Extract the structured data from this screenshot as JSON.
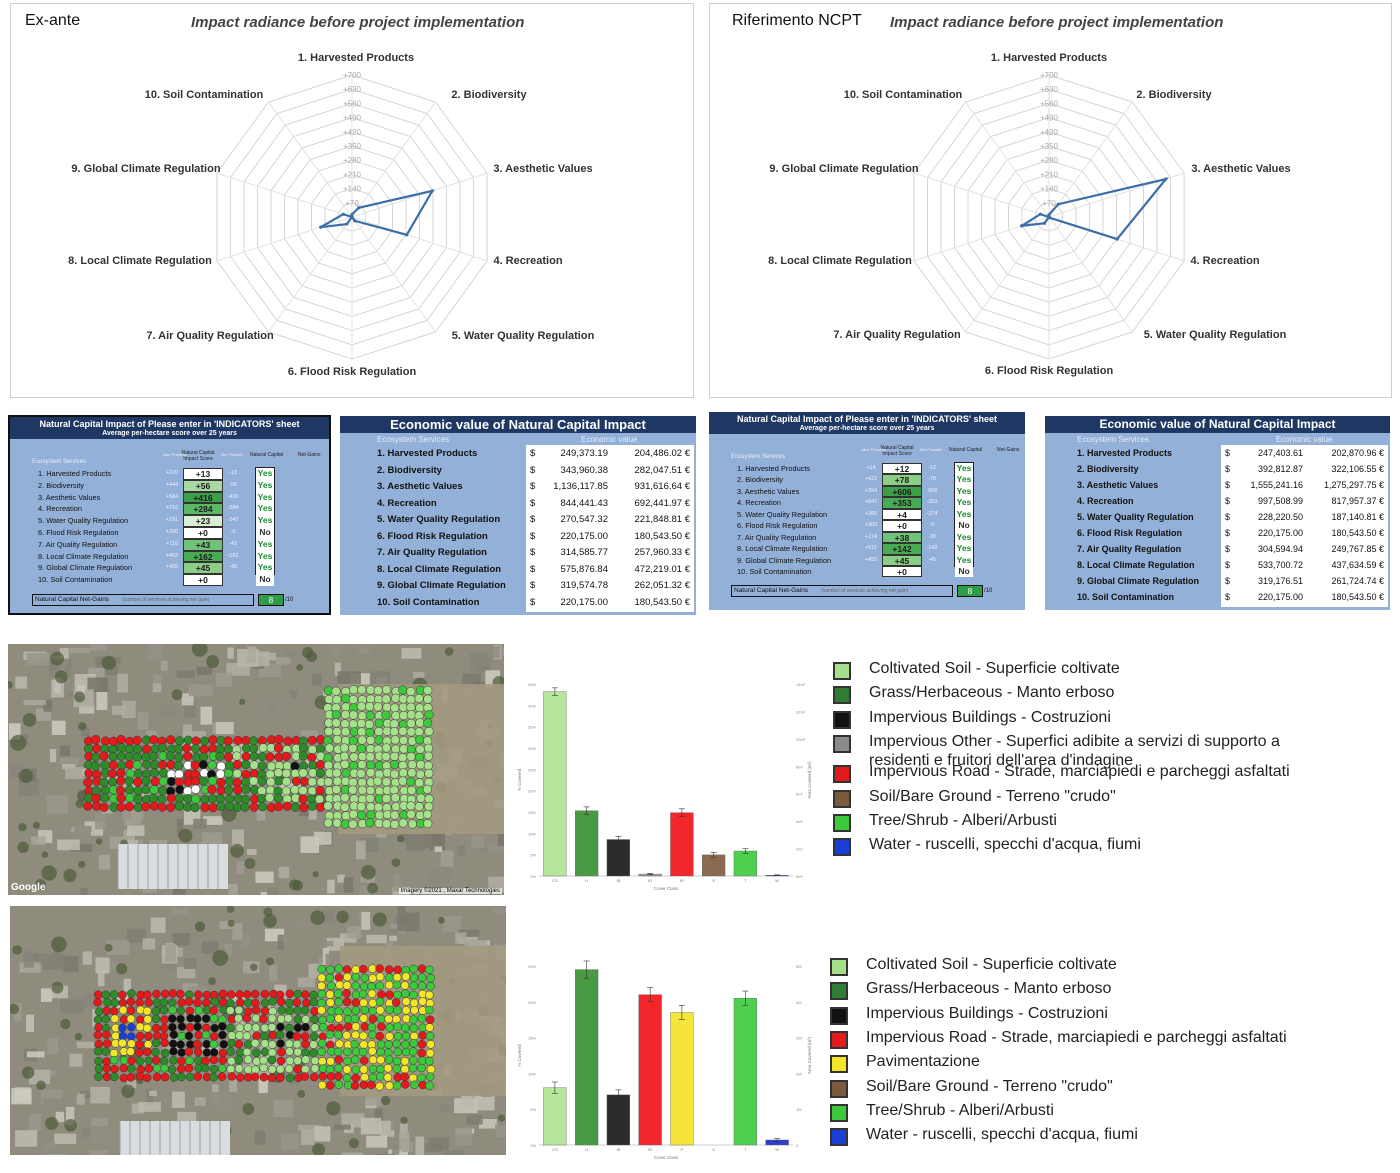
{
  "radar_axes": [
    "1. Harvested Products",
    "2. Biodiversity",
    "3. Aesthetic Values",
    "4. Recreation",
    "5. Water Quality Regulation",
    "6. Flood Risk Regulation",
    "7. Air Quality Regulation",
    "8. Local Climate Regulation",
    "9. Global Climate Regulation",
    "10. Soil Contamination"
  ],
  "radar_ticks": [
    "+70",
    "+140",
    "+210",
    "+280",
    "+350",
    "+420",
    "+490",
    "+560",
    "+630",
    "+700"
  ],
  "left_panel": {
    "label": "Ex-ante",
    "title": "Impact radiance before project implementation",
    "table": {
      "title": "Natural Capital Impact of Please enter in 'INDICATORS' sheet",
      "subtitle": "Average per-hectare score over 25 years",
      "col_services": "Ecosystem Services",
      "col_max": "Max Possible",
      "col_score": "Natural Capital Impact Score",
      "col_min": "Min Possible",
      "col_nc": "Natural Capital",
      "col_net": "Net-Gains",
      "rows": [
        {
          "name": "1. Harvested Products",
          "max": "+220",
          "score": "+13",
          "min": "-13",
          "yn": "Yes",
          "shade": "#ffffff"
        },
        {
          "name": "2. Biodiversity",
          "max": "+444",
          "score": "+56",
          "min": "-56",
          "yn": "Yes",
          "shade": "#a9d8a4"
        },
        {
          "name": "3. Aesthetic Values",
          "max": "+584",
          "score": "+416",
          "min": "-416",
          "yn": "Yes",
          "shade": "#3d9f4a"
        },
        {
          "name": "4. Recreation",
          "max": "+716",
          "score": "+284",
          "min": "-284",
          "yn": "Yes",
          "shade": "#5cb865"
        },
        {
          "name": "5. Water Quality Regulation",
          "max": "+291",
          "score": "+23",
          "min": "-247",
          "yn": "Yes",
          "shade": "#d8efd4"
        },
        {
          "name": "6. Flood Risk Regulation",
          "max": "+300",
          "score": "+0",
          "min": "-0",
          "yn": "No",
          "shade": "#ffffff"
        },
        {
          "name": "7. Air Quality Regulation",
          "max": "+110",
          "score": "+43",
          "min": "-43",
          "yn": "Yes",
          "shade": "#6fc277"
        },
        {
          "name": "8. Local Climate Regulation",
          "max": "+492",
          "score": "+162",
          "min": "-162",
          "yn": "Yes",
          "shade": "#4aab55"
        },
        {
          "name": "9. Global Climate Regulation",
          "max": "+455",
          "score": "+45",
          "min": "-45",
          "yn": "Yes",
          "shade": "#8ccd88"
        },
        {
          "name": "10. Soil Contamination",
          "max": "",
          "score": "+0",
          "min": "",
          "yn": "No",
          "shade": "#ffffff"
        }
      ],
      "net_label": "Natural Capital Net-Gains",
      "net_note": "(number of services achieving net gain)",
      "net_value": "8",
      "net_of": "/10"
    },
    "econ": {
      "title": "Economic value of Natural Capital Impact",
      "col_services": "Ecosystem Services",
      "col_value": "Economic value",
      "rows": [
        {
          "name": "1. Harvested Products",
          "usd": "249,373.19",
          "eur": "204,486.02 €"
        },
        {
          "name": "2. Biodiversity",
          "usd": "343,960.38",
          "eur": "282,047.51 €"
        },
        {
          "name": "3. Aesthetic Values",
          "usd": "1,136,117.85",
          "eur": "931,616.64 €"
        },
        {
          "name": "4. Recreation",
          "usd": "844,441.43",
          "eur": "692,441.97 €"
        },
        {
          "name": "5. Water Quality Regulation",
          "usd": "270,547.32",
          "eur": "221,848.81 €"
        },
        {
          "name": "6. Flood Risk Regulation",
          "usd": "220,175.00",
          "eur": "180,543.50 €"
        },
        {
          "name": "7. Air Quality Regulation",
          "usd": "314,585.77",
          "eur": "257,960.33 €"
        },
        {
          "name": "8. Local Climate Regulation",
          "usd": "575,876.84",
          "eur": "472,219.01 €"
        },
        {
          "name": "9. Global Climate Regulation",
          "usd": "319,574.78",
          "eur": "262,051.32 €"
        },
        {
          "name": "10. Soil Contamination",
          "usd": "220,175.00",
          "eur": "180,543.50 €"
        }
      ],
      "currency": "$"
    }
  },
  "right_panel": {
    "label": "Riferimento NCPT",
    "title": "Impact radiance before project implementation",
    "table": {
      "title": "Natural Capital Impact of Please enter in 'INDICATORS' sheet",
      "subtitle": "Average per-hectare score over 25 years",
      "col_services": "Ecosystem Services",
      "col_max": "Max Possible",
      "col_score": "Natural Capital Impact Score",
      "col_min": "Min Possible",
      "col_nc": "Natural Capital",
      "col_net": "Net-Gains",
      "rows": [
        {
          "name": "1. Harvested Products",
          "max": "+14",
          "score": "+12",
          "min": "-12",
          "yn": "Yes",
          "shade": "#ffffff"
        },
        {
          "name": "2. Biodiversity",
          "max": "+422",
          "score": "+78",
          "min": "-78",
          "yn": "Yes",
          "shade": "#8ccd88"
        },
        {
          "name": "3. Aesthetic Values",
          "max": "+394",
          "score": "+606",
          "min": "-606",
          "yn": "Yes",
          "shade": "#3d9f4a"
        },
        {
          "name": "4. Recreation",
          "max": "+647",
          "score": "+353",
          "min": "-353",
          "yn": "Yes",
          "shade": "#4aab55"
        },
        {
          "name": "5. Water Quality Regulation",
          "max": "+266",
          "score": "+4",
          "min": "-274",
          "yn": "Yes",
          "shade": "#ffffff"
        },
        {
          "name": "6. Flood Risk Regulation",
          "max": "+300",
          "score": "+0",
          "min": "-0",
          "yn": "No",
          "shade": "#ffffff"
        },
        {
          "name": "7. Air Quality Regulation",
          "max": "+114",
          "score": "+38",
          "min": "-38",
          "yn": "Yes",
          "shade": "#6fc277"
        },
        {
          "name": "8. Local Climate Regulation",
          "max": "+511",
          "score": "+142",
          "min": "-142",
          "yn": "Yes",
          "shade": "#4aab55"
        },
        {
          "name": "9. Global Climate Regulation",
          "max": "+455",
          "score": "+45",
          "min": "-45",
          "yn": "Yes",
          "shade": "#8ccd88"
        },
        {
          "name": "10. Soil Contamination",
          "max": "",
          "score": "+0",
          "min": "",
          "yn": "No",
          "shade": "#ffffff"
        }
      ],
      "net_label": "Natural Capital Net-Gains",
      "net_note": "(number of services achieving net gain)",
      "net_value": "8",
      "net_of": "/10"
    },
    "econ": {
      "title": "Economic value of Natural Capital Impact",
      "col_services": "Ecosystem Services",
      "col_value": "Economic value",
      "rows": [
        {
          "name": "1. Harvested Products",
          "usd": "247,403.61",
          "eur": "202,870.96 €"
        },
        {
          "name": "2. Biodiversity",
          "usd": "392,812.87",
          "eur": "322,106.55 €"
        },
        {
          "name": "3. Aesthetic Values",
          "usd": "1,555,241.16",
          "eur": "1,275,297.75 €"
        },
        {
          "name": "4. Recreation",
          "usd": "997,508.99",
          "eur": "817,957.37 €"
        },
        {
          "name": "5. Water Quality Regulation",
          "usd": "228,220.50",
          "eur": "187,140.81 €"
        },
        {
          "name": "6. Flood Risk Regulation",
          "usd": "220,175.00",
          "eur": "180,543.50 €"
        },
        {
          "name": "7. Air Quality Regulation",
          "usd": "304,594.94",
          "eur": "249,767.85 €"
        },
        {
          "name": "8. Local Climate Regulation",
          "usd": "533,700.72",
          "eur": "437,634.59 €"
        },
        {
          "name": "9. Global Climate Regulation",
          "usd": "319,176.51",
          "eur": "261,724.74 €"
        },
        {
          "name": "10. Soil Contamination",
          "usd": "220,175.00",
          "eur": "180,543.50 €"
        }
      ],
      "currency": "$"
    }
  },
  "map_top": {
    "attribution_left": "Google",
    "attribution_right": "Imagery ©2021 , Maxar Technologies"
  },
  "legend_top": [
    {
      "label": "Coltivated Soil - Superficie coltivate",
      "color": "#a6e08a"
    },
    {
      "label": "Grass/Herbaceous - Manto erboso",
      "color": "#2e7d32"
    },
    {
      "label": "Impervious Buildings - Costruzioni",
      "color": "#111111"
    },
    {
      "label": "Impervious Other - Superfici adibite a servizi di supporto a",
      "label2": "residenti e fruitori dell'area d'indagine",
      "color": "#8a8a8a"
    },
    {
      "label": "Impervious Road - Strade, marciapiedi e parcheggi asfaltati",
      "color": "#e31a1c"
    },
    {
      "label": "Soil/Bare Ground - Terreno \"crudo\"",
      "color": "#7b5a3c"
    },
    {
      "label": "Tree/Shrub - Alberi/Arbusti",
      "color": "#3cc93c"
    },
    {
      "label": "Water - ruscelli, specchi d'acqua, fiumi",
      "color": "#1a3fd6"
    }
  ],
  "legend_bottom": [
    {
      "label": "Coltivated Soil - Superficie coltivate",
      "color": "#a6e08a"
    },
    {
      "label": "Grass/Herbaceous - Manto erboso",
      "color": "#2e7d32"
    },
    {
      "label": "Impervious Buildings - Costruzioni",
      "color": "#111111"
    },
    {
      "label": "Impervious Road - Strade, marciapiedi e parcheggi asfaltati",
      "color": "#e31a1c"
    },
    {
      "label": "Pavimentazione",
      "color": "#f2e52a"
    },
    {
      "label": "Soil/Bare Ground - Terreno \"crudo\"",
      "color": "#7b5a3c"
    },
    {
      "label": "Tree/Shrub - Alberi/Arbusti",
      "color": "#3cc93c"
    },
    {
      "label": "Water - ruscelli, specchi d'acqua, fiumi",
      "color": "#1a3fd6"
    }
  ],
  "chart_data": [
    {
      "type": "line",
      "subtype": "radar",
      "title": "Impact radiance before project implementation",
      "categories": [
        "1. Harvested Products",
        "2. Biodiversity",
        "3. Aesthetic Values",
        "4. Recreation",
        "5. Water Quality Regulation",
        "6. Flood Risk Regulation",
        "7. Air Quality Regulation",
        "8. Local Climate Regulation",
        "9. Global Climate Regulation",
        "10. Soil Contamination"
      ],
      "values": [
        13,
        56,
        416,
        284,
        23,
        0,
        43,
        162,
        45,
        0
      ],
      "rlim": [
        0,
        700
      ],
      "color": "#3c6ea8"
    },
    {
      "type": "line",
      "subtype": "radar",
      "title": "Impact radiance before project implementation",
      "categories": [
        "1. Harvested Products",
        "2. Biodiversity",
        "3. Aesthetic Values",
        "4. Recreation",
        "5. Water Quality Regulation",
        "6. Flood Risk Regulation",
        "7. Air Quality Regulation",
        "8. Local Climate Regulation",
        "9. Global Climate Regulation",
        "10. Soil Contamination"
      ],
      "values": [
        12,
        78,
        606,
        353,
        4,
        0,
        38,
        142,
        45,
        0
      ],
      "rlim": [
        0,
        700
      ],
      "color": "#3c6ea8"
    },
    {
      "type": "bar",
      "categories": [
        "CS",
        "H",
        "IB",
        "IO",
        "IR",
        "S",
        "T",
        "W"
      ],
      "values": [
        48,
        17,
        9.5,
        0.5,
        16.5,
        5.5,
        6.5,
        0.2
      ],
      "errors": [
        1,
        1,
        0.8,
        0.2,
        1,
        0.6,
        0.6,
        0.1
      ],
      "colors": [
        "#b5e69a",
        "#4a9a44",
        "#2b2b2b",
        "#9b9b9b",
        "#f2262b",
        "#8c6a52",
        "#4fcf4f",
        "#2a3ed0"
      ],
      "xlabel": "Cover Class",
      "ylabel": "% Covered",
      "y2label": "Area Covered (m²)",
      "yticks": [
        "0%",
        "5%",
        "10%",
        "15%",
        "20%",
        "25%",
        "30%",
        "35%",
        "40%",
        "45%"
      ],
      "y2ticks": [
        "0m²",
        "2m²",
        "4m²",
        "6m²",
        "8m²",
        "10m²",
        "12m²",
        "14m²"
      ],
      "ylim": [
        0,
        50
      ]
    },
    {
      "type": "bar",
      "categories": [
        "CS",
        "H",
        "IB",
        "IR",
        "P",
        "S",
        "T",
        "W"
      ],
      "values": [
        8,
        24.5,
        7,
        21,
        18.5,
        0,
        20.5,
        0.7
      ],
      "errors": [
        0.8,
        1.2,
        0.7,
        1,
        1,
        0,
        1,
        0.2
      ],
      "colors": [
        "#b5e69a",
        "#4a9a44",
        "#2b2b2b",
        "#f2262b",
        "#f5e53a",
        "#8c6a52",
        "#4fcf4f",
        "#2a3ed0"
      ],
      "xlabel": "Cover Class",
      "ylabel": "% Covered",
      "y2label": "Area Covered (m²)",
      "yticks": [
        "0%",
        "5%",
        "10%",
        "15%",
        "20%",
        "25%"
      ],
      "y2ticks": [
        "0",
        "1M",
        "2M",
        "3M",
        "4M",
        "5M"
      ],
      "ylim": [
        0,
        25
      ]
    }
  ]
}
